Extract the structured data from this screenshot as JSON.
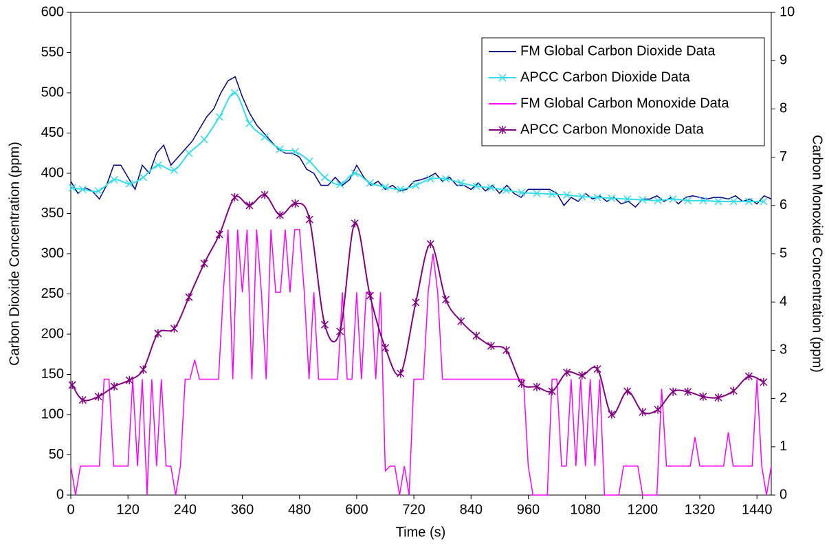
{
  "chart_data": {
    "type": "line",
    "smooth_apcc": true,
    "x_label": "Time (s)",
    "y_label": "Carbon Dioxide Concentration (ppm)",
    "y2_label": "Carbon Monoxide Concentration (ppm)",
    "xlim": [
      0,
      1470
    ],
    "xticks": [
      0,
      120,
      240,
      360,
      480,
      600,
      720,
      840,
      960,
      1080,
      1200,
      1320,
      1440
    ],
    "ylim": [
      0,
      600
    ],
    "yticks": [
      0,
      50,
      100,
      150,
      200,
      250,
      300,
      350,
      400,
      450,
      500,
      550,
      600
    ],
    "y2lim": [
      0,
      10
    ],
    "y2ticks": [
      0,
      1,
      2,
      3,
      4,
      5,
      6,
      7,
      8,
      9,
      10
    ],
    "legend": "upper right",
    "series": [
      {
        "name": "FM Global Carbon Dioxide Data",
        "color": "#000080",
        "marker": "none",
        "smooth": false,
        "x": [
          0,
          15,
          30,
          45,
          60,
          75,
          90,
          105,
          120,
          135,
          150,
          165,
          180,
          195,
          210,
          225,
          240,
          255,
          270,
          285,
          300,
          315,
          330,
          345,
          360,
          375,
          390,
          405,
          420,
          435,
          450,
          465,
          480,
          495,
          510,
          525,
          540,
          555,
          570,
          585,
          600,
          615,
          630,
          645,
          660,
          675,
          690,
          705,
          720,
          735,
          750,
          765,
          780,
          795,
          810,
          825,
          840,
          855,
          870,
          885,
          900,
          915,
          930,
          945,
          960,
          975,
          990,
          1005,
          1020,
          1035,
          1050,
          1065,
          1080,
          1095,
          1110,
          1125,
          1140,
          1155,
          1170,
          1185,
          1200,
          1215,
          1230,
          1245,
          1260,
          1275,
          1290,
          1305,
          1320,
          1335,
          1350,
          1365,
          1380,
          1395,
          1410,
          1425,
          1440,
          1455,
          1470
        ],
        "values": [
          390,
          375,
          382,
          378,
          368,
          385,
          410,
          410,
          395,
          380,
          410,
          400,
          425,
          435,
          410,
          420,
          430,
          440,
          455,
          470,
          480,
          500,
          515,
          520,
          495,
          475,
          460,
          450,
          440,
          430,
          425,
          425,
          420,
          405,
          400,
          385,
          385,
          395,
          385,
          392,
          410,
          395,
          385,
          390,
          380,
          385,
          378,
          380,
          390,
          392,
          395,
          400,
          390,
          395,
          385,
          385,
          380,
          388,
          378,
          385,
          375,
          385,
          375,
          370,
          380,
          380,
          380,
          380,
          375,
          360,
          370,
          365,
          375,
          368,
          372,
          365,
          370,
          362,
          365,
          358,
          368,
          368,
          372,
          365,
          370,
          362,
          370,
          372,
          370,
          368,
          370,
          370,
          368,
          372,
          365,
          368,
          362,
          372,
          368
        ]
      },
      {
        "name": "APCC Carbon Dioxide Data",
        "color": "#33dde8",
        "marker": "x",
        "smooth": true,
        "x": [
          3,
          25,
          58,
          91,
          123,
          152,
          183,
          217,
          248,
          280,
          312,
          344,
          375,
          407,
          439,
          471,
          501,
          533,
          565,
          596,
          628,
          660,
          692,
          724,
          755,
          787,
          819,
          851,
          882,
          914,
          946,
          978,
          1010,
          1041,
          1073,
          1105,
          1135,
          1168,
          1200,
          1232,
          1264,
          1295,
          1327,
          1359,
          1391,
          1423,
          1454
        ],
        "values": [
          382,
          380,
          378,
          392,
          387,
          395,
          410,
          404,
          425,
          442,
          470,
          500,
          462,
          445,
          430,
          427,
          415,
          395,
          386,
          400,
          388,
          383,
          380,
          385,
          393,
          393,
          388,
          384,
          382,
          379,
          376,
          375,
          374,
          373,
          371,
          370,
          369,
          368,
          367,
          366,
          368,
          366,
          366,
          365,
          365,
          365,
          365
        ]
      },
      {
        "name": "FM Global Carbon Monoxide Data",
        "color": "#ff00ff",
        "marker": "none",
        "smooth": false,
        "axis": "y2",
        "x": [
          0,
          10,
          20,
          30,
          40,
          50,
          60,
          70,
          80,
          90,
          100,
          110,
          120,
          130,
          140,
          150,
          160,
          170,
          180,
          190,
          200,
          210,
          220,
          230,
          240,
          250,
          260,
          270,
          280,
          290,
          300,
          310,
          320,
          330,
          340,
          350,
          360,
          370,
          380,
          390,
          400,
          410,
          420,
          430,
          440,
          450,
          460,
          470,
          480,
          490,
          500,
          510,
          520,
          530,
          540,
          550,
          560,
          570,
          580,
          590,
          600,
          610,
          620,
          630,
          640,
          650,
          660,
          670,
          680,
          690,
          700,
          710,
          720,
          730,
          740,
          750,
          760,
          770,
          780,
          790,
          800,
          810,
          820,
          830,
          840,
          850,
          860,
          870,
          880,
          890,
          900,
          910,
          920,
          930,
          940,
          950,
          960,
          970,
          980,
          990,
          1000,
          1010,
          1020,
          1030,
          1040,
          1050,
          1060,
          1070,
          1080,
          1090,
          1100,
          1110,
          1120,
          1130,
          1140,
          1150,
          1160,
          1170,
          1180,
          1190,
          1200,
          1210,
          1220,
          1230,
          1240,
          1250,
          1260,
          1270,
          1280,
          1290,
          1300,
          1310,
          1320,
          1330,
          1340,
          1350,
          1360,
          1370,
          1380,
          1390,
          1400,
          1410,
          1420,
          1430,
          1440,
          1450,
          1460,
          1470
        ],
        "values": [
          0.6,
          0,
          0.6,
          0.6,
          0.6,
          0.6,
          0.6,
          2.4,
          2.4,
          0.6,
          0.6,
          0.6,
          0.6,
          2.4,
          0.6,
          2.4,
          0,
          2.4,
          0.6,
          2.4,
          0.6,
          0.6,
          0,
          0.6,
          2.4,
          2.4,
          2.8,
          2.4,
          2.4,
          2.4,
          2.4,
          2.4,
          4.2,
          5.5,
          2.4,
          5.5,
          4.2,
          5.5,
          2.4,
          5.5,
          4.2,
          2.4,
          5.5,
          4.2,
          4.2,
          5.5,
          4.2,
          5.5,
          5.5,
          4.2,
          2.4,
          4.2,
          2.4,
          2.4,
          2.4,
          2.4,
          2.4,
          4.2,
          2.4,
          2.4,
          4.2,
          2.4,
          4.2,
          4.2,
          2.4,
          4.2,
          0.5,
          0.6,
          0.6,
          0,
          0.6,
          0,
          2.4,
          2.4,
          2.4,
          4.2,
          5,
          4.2,
          2.4,
          2.4,
          2.4,
          2.4,
          2.4,
          2.4,
          2.4,
          2.4,
          2.4,
          2.4,
          2.4,
          2.4,
          2.4,
          2.4,
          2.4,
          2.4,
          2.4,
          2.4,
          0.6,
          0,
          0,
          0,
          0,
          2.4,
          2.4,
          0.6,
          0.6,
          2.4,
          0.6,
          2.4,
          0.6,
          2.4,
          0.6,
          2.4,
          0,
          0,
          0,
          0,
          0.6,
          0.6,
          0.6,
          0.6,
          0,
          0,
          0,
          0,
          2.2,
          0.6,
          0.6,
          0.6,
          0.6,
          0.6,
          0.6,
          1.2,
          0.6,
          0.6,
          0.6,
          0.6,
          0.6,
          0.6,
          1.3,
          0.6,
          0.6,
          0.6,
          0.6,
          0.6,
          2.4,
          0.6,
          0,
          0.6
        ]
      },
      {
        "name": "APCC Carbon Monoxide Data",
        "color": "#800080",
        "marker": "asterisk",
        "smooth": true,
        "axis": "y2",
        "x": [
          3,
          25,
          58,
          91,
          123,
          152,
          183,
          217,
          248,
          280,
          312,
          344,
          375,
          407,
          439,
          471,
          501,
          533,
          565,
          596,
          628,
          660,
          692,
          724,
          755,
          787,
          819,
          851,
          882,
          914,
          946,
          978,
          1010,
          1041,
          1073,
          1105,
          1135,
          1168,
          1200,
          1232,
          1264,
          1295,
          1327,
          1359,
          1391,
          1423,
          1454
        ],
        "values": [
          2.28,
          1.97,
          2.04,
          2.25,
          2.38,
          2.6,
          3.35,
          3.45,
          4.1,
          4.8,
          5.4,
          6.17,
          6,
          6.22,
          5.8,
          6.04,
          5.71,
          3.53,
          3.39,
          5.63,
          4.13,
          3.05,
          2.52,
          3.99,
          5.2,
          4.05,
          3.6,
          3.3,
          3.09,
          3,
          2.31,
          2.24,
          2.15,
          2.54,
          2.48,
          2.61,
          1.67,
          2.15,
          1.72,
          1.77,
          2.14,
          2.14,
          2.04,
          2.02,
          2.16,
          2.46,
          2.34
        ]
      }
    ]
  }
}
